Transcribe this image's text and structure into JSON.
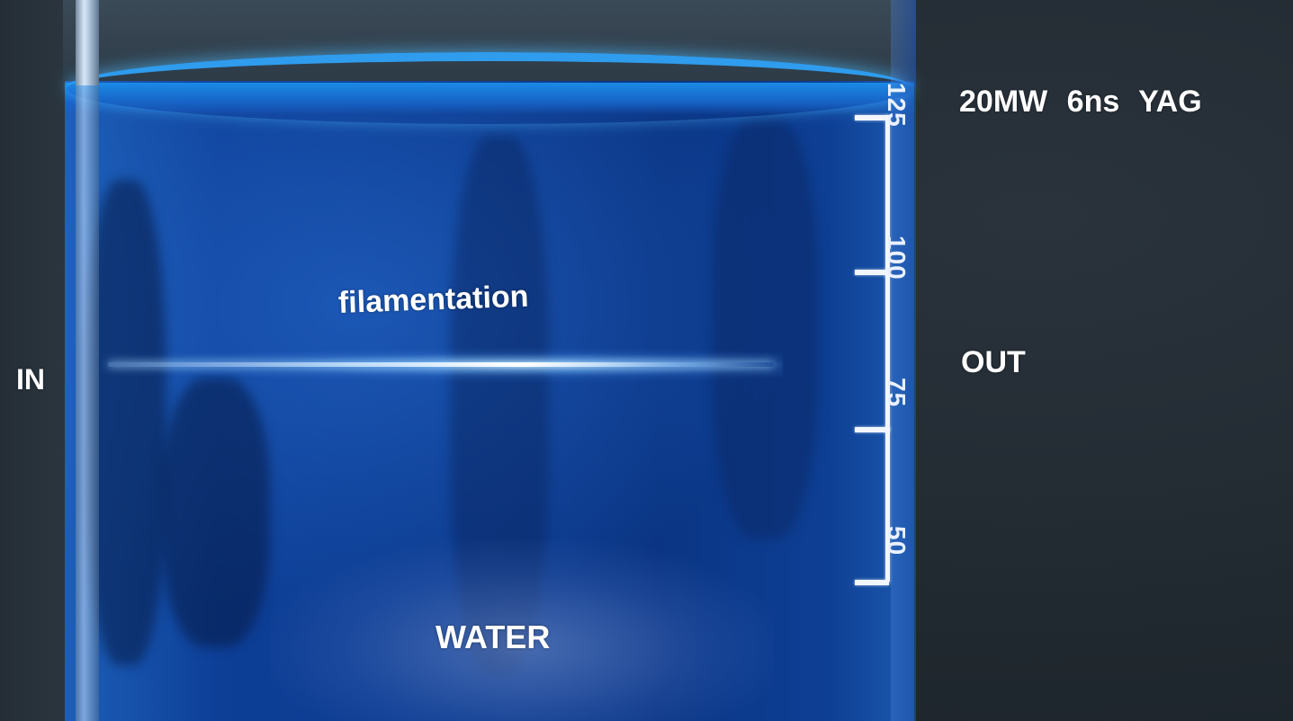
{
  "labels": {
    "spec": "20MW  6ns  YAG",
    "input": "IN",
    "output": "OUT",
    "filamentation": "filamentation",
    "medium": "WATER"
  },
  "graduations": {
    "marks": [
      "125",
      "100",
      "75",
      "50"
    ]
  },
  "colors": {
    "water": "#0c3a8e",
    "meniscus": "#2fa7ff",
    "beam": "#ffffff",
    "background": "#232b33",
    "text": "#ffffff"
  }
}
